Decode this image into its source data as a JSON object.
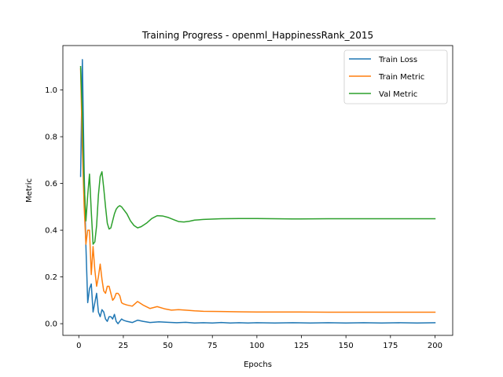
{
  "chart_data": {
    "type": "line",
    "title": "Training Progress - openml_HappinessRank_2015",
    "xlabel": "Epochs",
    "ylabel": "Metric",
    "xlim": [
      -8.95,
      209.95
    ],
    "ylim": [
      -0.05,
      1.19
    ],
    "xticks": [
      0,
      25,
      50,
      75,
      100,
      125,
      150,
      175,
      200
    ],
    "yticks": [
      0.0,
      0.2,
      0.4,
      0.6,
      0.8,
      1.0
    ],
    "grid": false,
    "legend_position": "top-right",
    "series": [
      {
        "name": "Train Loss",
        "color": "#1f77b4",
        "x": [
          1,
          2,
          3,
          4,
          5,
          6,
          7,
          8,
          9,
          10,
          11,
          12,
          13,
          14,
          15,
          16,
          17,
          18,
          19,
          20,
          21,
          22,
          23,
          24,
          25,
          27,
          30,
          33,
          36,
          40,
          45,
          50,
          55,
          60,
          65,
          70,
          75,
          80,
          85,
          90,
          95,
          100,
          110,
          120,
          130,
          140,
          150,
          160,
          170,
          180,
          190,
          200
        ],
        "y": [
          0.63,
          1.13,
          0.65,
          0.33,
          0.09,
          0.15,
          0.17,
          0.05,
          0.09,
          0.13,
          0.05,
          0.03,
          0.06,
          0.05,
          0.02,
          0.01,
          0.03,
          0.03,
          0.02,
          0.04,
          0.01,
          0.0,
          0.01,
          0.02,
          0.015,
          0.01,
          0.005,
          0.015,
          0.01,
          0.005,
          0.008,
          0.006,
          0.004,
          0.006,
          0.003,
          0.004,
          0.003,
          0.005,
          0.003,
          0.004,
          0.003,
          0.004,
          0.003,
          0.004,
          0.003,
          0.004,
          0.003,
          0.004,
          0.003,
          0.004,
          0.003,
          0.004
        ]
      },
      {
        "name": "Train Metric",
        "color": "#ff7f0e",
        "x": [
          1,
          2,
          3,
          4,
          5,
          6,
          7,
          8,
          9,
          10,
          11,
          12,
          13,
          14,
          15,
          16,
          17,
          18,
          19,
          20,
          21,
          22,
          23,
          24,
          25,
          27,
          30,
          33,
          36,
          40,
          44,
          48,
          52,
          56,
          60,
          65,
          70,
          80,
          90,
          100,
          120,
          140,
          160,
          180,
          200
        ],
        "y": [
          1.09,
          0.75,
          0.5,
          0.34,
          0.4,
          0.4,
          0.21,
          0.33,
          0.23,
          0.16,
          0.2,
          0.255,
          0.19,
          0.14,
          0.13,
          0.16,
          0.16,
          0.13,
          0.1,
          0.11,
          0.13,
          0.13,
          0.12,
          0.09,
          0.085,
          0.08,
          0.075,
          0.095,
          0.08,
          0.065,
          0.073,
          0.064,
          0.058,
          0.06,
          0.058,
          0.055,
          0.053,
          0.052,
          0.051,
          0.05,
          0.05,
          0.049,
          0.049,
          0.049,
          0.049
        ]
      },
      {
        "name": "Val Metric",
        "color": "#2ca02c",
        "x": [
          1,
          2,
          3,
          4,
          5,
          6,
          7,
          8,
          9,
          10,
          11,
          12,
          13,
          14,
          15,
          16,
          17,
          18,
          19,
          20,
          21,
          22,
          23,
          24,
          25,
          27,
          29,
          31,
          33,
          35,
          38,
          41,
          44,
          47,
          50,
          53,
          56,
          59,
          62,
          65,
          70,
          80,
          90,
          100,
          110,
          120,
          140,
          160,
          180,
          200
        ],
        "y": [
          1.1,
          0.9,
          0.6,
          0.44,
          0.55,
          0.64,
          0.48,
          0.34,
          0.35,
          0.42,
          0.55,
          0.63,
          0.65,
          0.58,
          0.5,
          0.43,
          0.405,
          0.41,
          0.44,
          0.47,
          0.49,
          0.5,
          0.505,
          0.5,
          0.49,
          0.47,
          0.44,
          0.42,
          0.41,
          0.415,
          0.43,
          0.45,
          0.462,
          0.461,
          0.455,
          0.446,
          0.437,
          0.435,
          0.438,
          0.443,
          0.446,
          0.449,
          0.45,
          0.45,
          0.449,
          0.448,
          0.449,
          0.449,
          0.449,
          0.449
        ]
      }
    ]
  }
}
